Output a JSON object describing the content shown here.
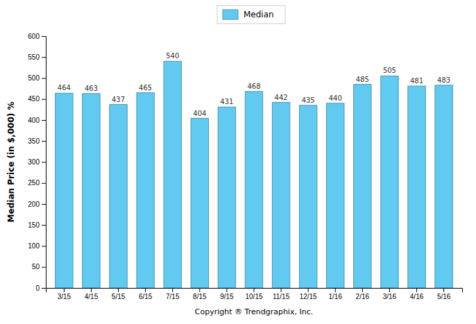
{
  "chart_data": {
    "type": "bar",
    "categories": [
      "3/15",
      "4/15",
      "5/15",
      "6/15",
      "7/15",
      "8/15",
      "9/15",
      "10/15",
      "11/15",
      "12/15",
      "1/16",
      "2/16",
      "3/16",
      "4/16",
      "5/16"
    ],
    "series": [
      {
        "name": "Median",
        "color": "#62C9F0",
        "values": [
          464,
          463,
          437,
          465,
          540,
          404,
          431,
          468,
          442,
          435,
          440,
          485,
          505,
          481,
          483
        ]
      }
    ],
    "xlabel": "Copyright ® Trendgraphix, Inc.",
    "ylabel": "Median Price (in $,000) %",
    "ylim": [
      0,
      600
    ],
    "yticks": [
      0,
      50,
      100,
      150,
      200,
      250,
      300,
      350,
      400,
      450,
      500,
      550,
      600
    ],
    "grid": false,
    "legend": "top",
    "data_labels": true
  }
}
